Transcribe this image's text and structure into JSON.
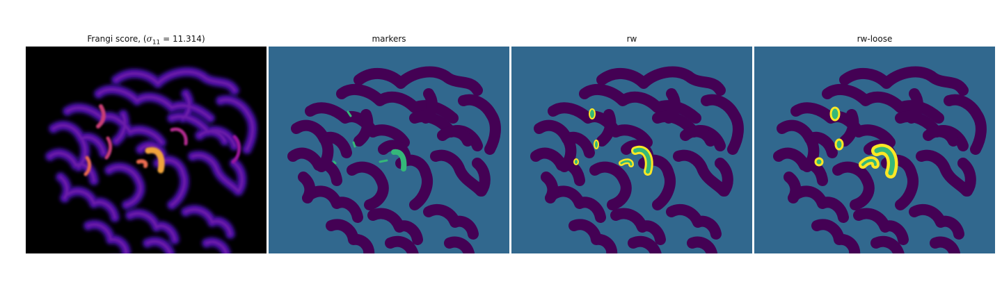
{
  "panels": [
    {
      "title_prefix": "Frangi score, (",
      "title_symbol": "σ",
      "title_subscript": "11",
      "title_suffix": " = 11.314)",
      "background": "#000000",
      "colormap": "plasma"
    },
    {
      "title": "markers",
      "background": "#31688e",
      "blob_color": "#440154",
      "highlight_color": "#35b779",
      "colormap": "viridis"
    },
    {
      "title": "rw",
      "background": "#31688e",
      "blob_color": "#440154",
      "highlight_color": "#35b779",
      "outline_color": "#fde725",
      "colormap": "viridis"
    },
    {
      "title": "rw-loose",
      "background": "#31688e",
      "blob_color": "#440154",
      "highlight_color": "#35b779",
      "outline_color": "#fde725",
      "colormap": "viridis"
    }
  ]
}
